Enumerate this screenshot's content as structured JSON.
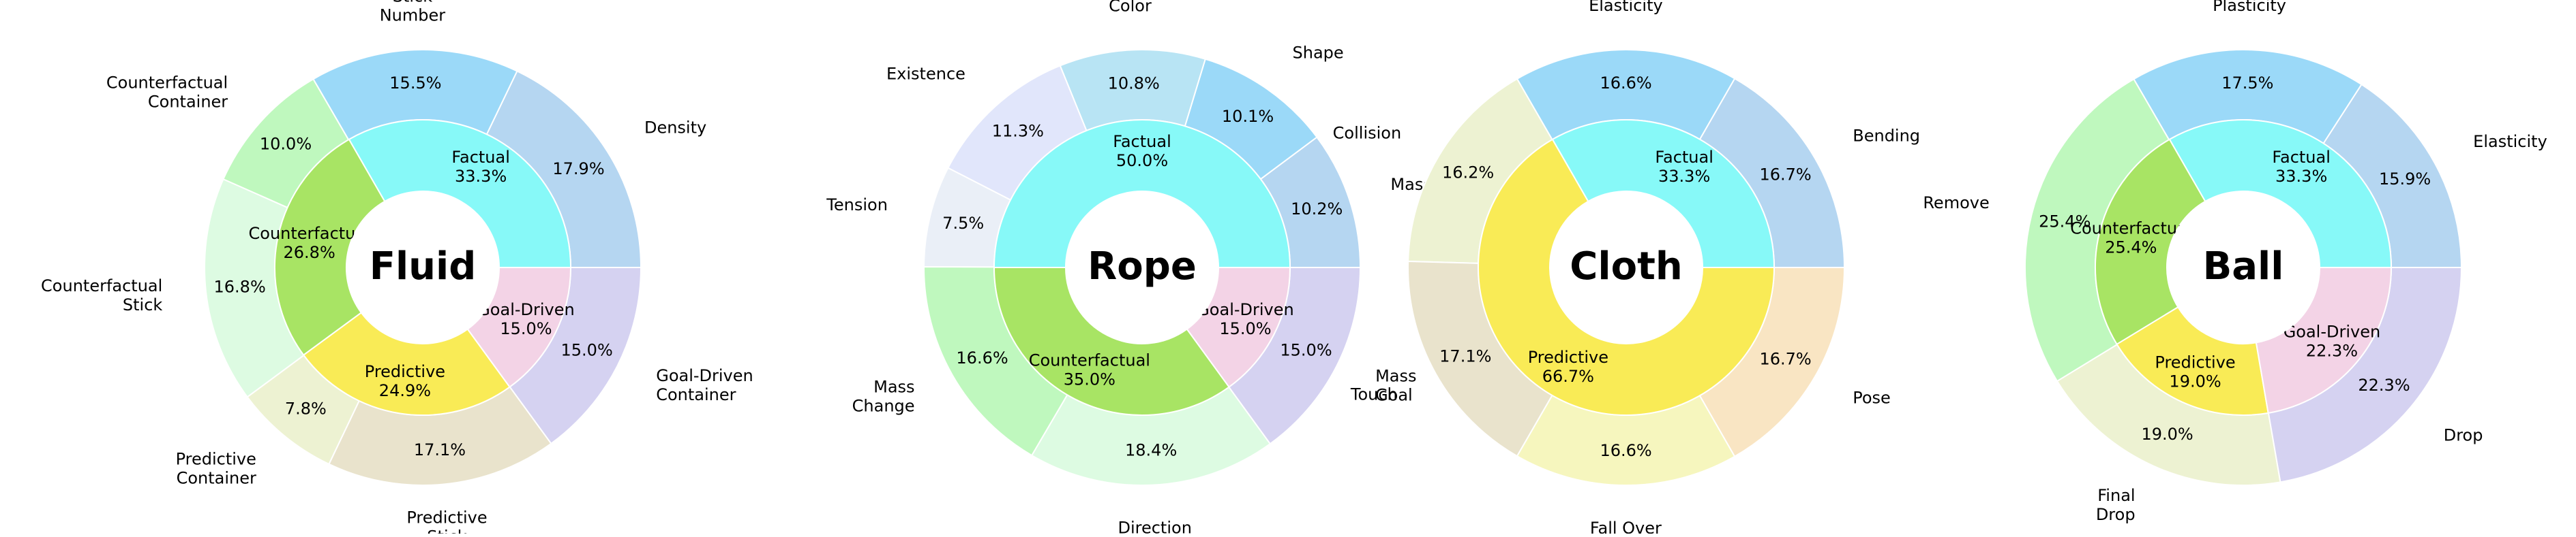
{
  "chart_data": [
    {
      "type": "pie",
      "center_label": "Fluid",
      "inner": [
        {
          "label": "Factual",
          "value": 33.3,
          "pct_text": "33.3%",
          "color": "#87F9F8"
        },
        {
          "label": "Counterfactual",
          "value": 26.8,
          "pct_text": "26.8%",
          "color": "#A8E464"
        },
        {
          "label": "Predictive",
          "value": 24.9,
          "pct_text": "24.9%",
          "color": "#F9EB56"
        },
        {
          "label": "Goal-Driven",
          "value": 15.0,
          "pct_text": "15.0%",
          "color": "#F3D3E6"
        }
      ],
      "outer": [
        {
          "label": "Density",
          "value": 17.9,
          "pct_text": "17.9%",
          "color": "#B5D6F1"
        },
        {
          "label": "Stick\nNumber",
          "value": 15.5,
          "pct_text": "15.5%",
          "color": "#9BD9F8"
        },
        {
          "label": "Counterfactual\nContainer",
          "value": 10.0,
          "pct_text": "10.0%",
          "color": "#BFF8BE"
        },
        {
          "label": "Counterfactual\nStick",
          "value": 16.8,
          "pct_text": "16.8%",
          "color": "#DDFBE2"
        },
        {
          "label": "Predictive\nContainer",
          "value": 7.8,
          "pct_text": "7.8%",
          "color": "#EDF2D2"
        },
        {
          "label": "Predictive\nStick",
          "value": 17.1,
          "pct_text": "17.1%",
          "color": "#E9E3CC"
        },
        {
          "label": "Goal-Driven\nContainer",
          "value": 15.0,
          "pct_text": "15.0%",
          "color": "#D5D2F1"
        }
      ]
    },
    {
      "type": "pie",
      "center_label": "Rope",
      "inner": [
        {
          "label": "Factual",
          "value": 50.0,
          "pct_text": "50.0%",
          "color": "#87F9F8"
        },
        {
          "label": "Counterfactual",
          "value": 35.0,
          "pct_text": "35.0%",
          "color": "#A8E464"
        },
        {
          "label": "Goal-Driven",
          "value": 15.0,
          "pct_text": "15.0%",
          "color": "#F3D3E6"
        }
      ],
      "outer": [
        {
          "label": "Mass",
          "value": 10.2,
          "pct_text": "10.2%",
          "color": "#B5D6F1"
        },
        {
          "label": "Shape",
          "value": 10.1,
          "pct_text": "10.1%",
          "color": "#9BD9F8"
        },
        {
          "label": "Color",
          "value": 10.8,
          "pct_text": "10.8%",
          "color": "#B8E4F4"
        },
        {
          "label": "Existence",
          "value": 11.3,
          "pct_text": "11.3%",
          "color": "#E1E6FB"
        },
        {
          "label": "Tension",
          "value": 7.5,
          "pct_text": "7.5%",
          "color": "#EAEFF7"
        },
        {
          "label": "Mass\nChange",
          "value": 16.6,
          "pct_text": "16.6%",
          "color": "#BFF8BE"
        },
        {
          "label": "Direction",
          "value": 18.4,
          "pct_text": "18.4%",
          "color": "#DDFBE2"
        },
        {
          "label": "Mass\nGoal",
          "value": 15.0,
          "pct_text": "15.0%",
          "color": "#D5D2F1"
        }
      ]
    },
    {
      "type": "pie",
      "center_label": "Cloth",
      "inner": [
        {
          "label": "Factual",
          "value": 33.3,
          "pct_text": "33.3%",
          "color": "#87F9F8"
        },
        {
          "label": "Predictive",
          "value": 66.7,
          "pct_text": "66.7%",
          "color": "#F9EB56"
        }
      ],
      "outer": [
        {
          "label": "Bending",
          "value": 16.7,
          "pct_text": "16.7%",
          "color": "#B5D6F1"
        },
        {
          "label": "Elasticity",
          "value": 16.6,
          "pct_text": "16.6%",
          "color": "#9BD9F8"
        },
        {
          "label": "Collision",
          "value": 16.2,
          "pct_text": "16.2%",
          "color": "#EDF2D2"
        },
        {
          "label": "Touch",
          "value": 17.1,
          "pct_text": "17.1%",
          "color": "#E9E3CC"
        },
        {
          "label": "Fall Over",
          "value": 16.6,
          "pct_text": "16.6%",
          "color": "#F6F6BE"
        },
        {
          "label": "Pose",
          "value": 16.7,
          "pct_text": "16.7%",
          "color": "#F9E5C3"
        }
      ]
    },
    {
      "type": "pie",
      "center_label": "Ball",
      "inner": [
        {
          "label": "Factual",
          "value": 33.3,
          "pct_text": "33.3%",
          "color": "#87F9F8"
        },
        {
          "label": "Counterfactual",
          "value": 25.4,
          "pct_text": "25.4%",
          "color": "#A8E464"
        },
        {
          "label": "Predictive",
          "value": 19.0,
          "pct_text": "19.0%",
          "color": "#F9EB56"
        },
        {
          "label": "Goal-Driven",
          "value": 22.3,
          "pct_text": "22.3%",
          "color": "#F3D3E6"
        }
      ],
      "outer": [
        {
          "label": "Elasticity",
          "value": 15.9,
          "pct_text": "15.9%",
          "color": "#B5D6F1"
        },
        {
          "label": "Plasticity",
          "value": 17.5,
          "pct_text": "17.5%",
          "color": "#9BD9F8"
        },
        {
          "label": "Remove",
          "value": 25.4,
          "pct_text": "25.4%",
          "color": "#BFF8BE"
        },
        {
          "label": "Final\nDrop",
          "value": 19.0,
          "pct_text": "19.0%",
          "color": "#EDF2D2"
        },
        {
          "label": "Drop",
          "value": 22.3,
          "pct_text": "22.3%",
          "color": "#D5D2F1"
        }
      ]
    }
  ]
}
